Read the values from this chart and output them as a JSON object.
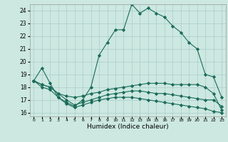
{
  "title": "",
  "xlabel": "Humidex (Indice chaleur)",
  "background_color": "#cce8e0",
  "grid_color": "#aacccc",
  "line_color": "#1a6b5a",
  "xlim": [
    -0.5,
    23.5
  ],
  "ylim": [
    15.7,
    24.5
  ],
  "yticks": [
    16,
    17,
    18,
    19,
    20,
    21,
    22,
    23,
    24
  ],
  "xticks": [
    0,
    1,
    2,
    3,
    4,
    5,
    6,
    7,
    8,
    9,
    10,
    11,
    12,
    13,
    14,
    15,
    16,
    17,
    18,
    19,
    20,
    21,
    22,
    23
  ],
  "series": [
    {
      "x": [
        0,
        1,
        2,
        3,
        4,
        5,
        6,
        7,
        8,
        9,
        10,
        11,
        12,
        13,
        14,
        15,
        16,
        17,
        18,
        19,
        20,
        21,
        22,
        23
      ],
      "y": [
        18.5,
        19.5,
        18.3,
        17.2,
        16.8,
        16.5,
        17.0,
        18.0,
        20.5,
        21.5,
        22.5,
        22.5,
        24.5,
        23.8,
        24.2,
        23.8,
        23.5,
        22.8,
        22.3,
        21.5,
        21.0,
        19.0,
        18.8,
        17.2
      ]
    },
    {
      "x": [
        0,
        1,
        2,
        3,
        4,
        5,
        6,
        7,
        8,
        9,
        10,
        11,
        12,
        13,
        14,
        15,
        16,
        17,
        18,
        19,
        20,
        21,
        22,
        23
      ],
      "y": [
        18.5,
        18.2,
        18.0,
        17.5,
        17.3,
        17.2,
        17.3,
        17.5,
        17.6,
        17.8,
        17.9,
        18.0,
        18.1,
        18.2,
        18.3,
        18.3,
        18.3,
        18.2,
        18.2,
        18.2,
        18.2,
        18.0,
        17.5,
        16.2
      ]
    },
    {
      "x": [
        0,
        1,
        2,
        3,
        4,
        5,
        6,
        7,
        8,
        9,
        10,
        11,
        12,
        13,
        14,
        15,
        16,
        17,
        18,
        19,
        20,
        21,
        22,
        23
      ],
      "y": [
        18.5,
        18.2,
        18.0,
        17.5,
        17.0,
        16.6,
        16.8,
        17.0,
        17.2,
        17.4,
        17.5,
        17.6,
        17.7,
        17.7,
        17.6,
        17.5,
        17.5,
        17.4,
        17.3,
        17.2,
        17.1,
        17.0,
        17.0,
        16.5
      ]
    },
    {
      "x": [
        0,
        1,
        2,
        3,
        4,
        5,
        6,
        7,
        8,
        9,
        10,
        11,
        12,
        13,
        14,
        15,
        16,
        17,
        18,
        19,
        20,
        21,
        22,
        23
      ],
      "y": [
        18.5,
        18.0,
        17.8,
        17.2,
        16.7,
        16.4,
        16.6,
        16.8,
        17.0,
        17.1,
        17.2,
        17.2,
        17.2,
        17.1,
        17.0,
        16.9,
        16.8,
        16.7,
        16.6,
        16.5,
        16.4,
        16.3,
        16.1,
        16.0
      ]
    }
  ]
}
